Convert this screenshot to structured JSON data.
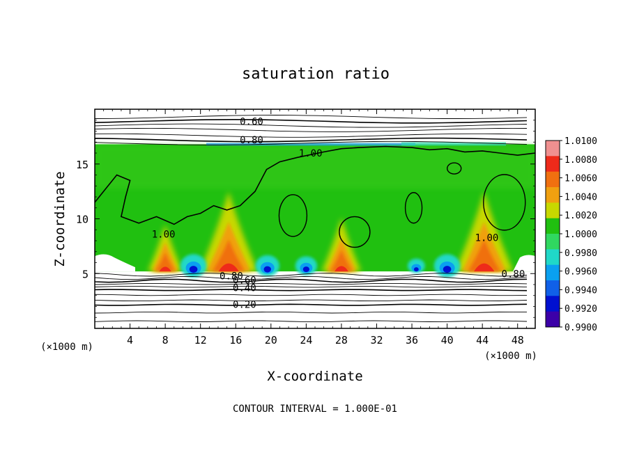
{
  "chart_data": {
    "type": "heatmap",
    "title": "saturation ratio",
    "xlabel": "X-coordinate",
    "ylabel": "Z-coordinate",
    "x_unit": "(×1000 m)",
    "x_unit_right": "(×1000 m)",
    "x_ticks": [
      "4",
      "8",
      "12",
      "16",
      "20",
      "24",
      "28",
      "32",
      "36",
      "40",
      "44",
      "48"
    ],
    "y_ticks": [
      "5",
      "10",
      "15"
    ],
    "xlim": [
      0,
      50
    ],
    "ylim": [
      0,
      20
    ],
    "contour_interval_text": "CONTOUR INTERVAL = 1.000E-01",
    "contour_labels": [
      {
        "text": "0.60",
        "x": 17.8,
        "z": 18.9
      },
      {
        "text": "0.80",
        "x": 17.8,
        "z": 17.2
      },
      {
        "text": "1.00",
        "x": 24.5,
        "z": 16.0
      },
      {
        "text": "1.00",
        "x": 7.8,
        "z": 8.6
      },
      {
        "text": "1.00",
        "x": 44.5,
        "z": 8.3
      },
      {
        "text": "0.80",
        "x": 47.5,
        "z": 5.0
      },
      {
        "text": "0.80",
        "x": 15.5,
        "z": 4.8
      },
      {
        "text": "0.60",
        "x": 17.0,
        "z": 4.4
      },
      {
        "text": "0.40",
        "x": 17.0,
        "z": 3.7
      },
      {
        "text": "0.20",
        "x": 17.0,
        "z": 2.2
      }
    ],
    "colorbar": {
      "labels": [
        "1.0100",
        "1.0080",
        "1.0060",
        "1.0040",
        "1.0020",
        "1.0000",
        "0.9980",
        "0.9960",
        "0.9940",
        "0.9920",
        "0.9900"
      ],
      "colors": [
        "#f09090",
        "#ee2a1a",
        "#f07010",
        "#f0a010",
        "#c8d800",
        "#20c010",
        "#30d860",
        "#20d8c8",
        "#0aa0f0",
        "#1060e8",
        "#0010d0",
        "#3c00a8"
      ]
    },
    "cloud_base_z": 5.2,
    "cloud_top_z": 16.8,
    "background_value": 1.0,
    "supersaturated_plumes": [
      {
        "x": 15.2,
        "peak": 1.01
      },
      {
        "x": 28.0,
        "peak": 1.006
      },
      {
        "x": 44.2,
        "peak": 1.01
      },
      {
        "x": 8.0,
        "peak": 1.005
      }
    ],
    "subsaturated_pockets": [
      {
        "x": 11.2,
        "min": 0.992
      },
      {
        "x": 19.6,
        "min": 0.993
      },
      {
        "x": 24.0,
        "min": 0.994
      },
      {
        "x": 40.0,
        "min": 0.992
      },
      {
        "x": 36.5,
        "min": 0.996
      }
    ],
    "grid": false
  }
}
